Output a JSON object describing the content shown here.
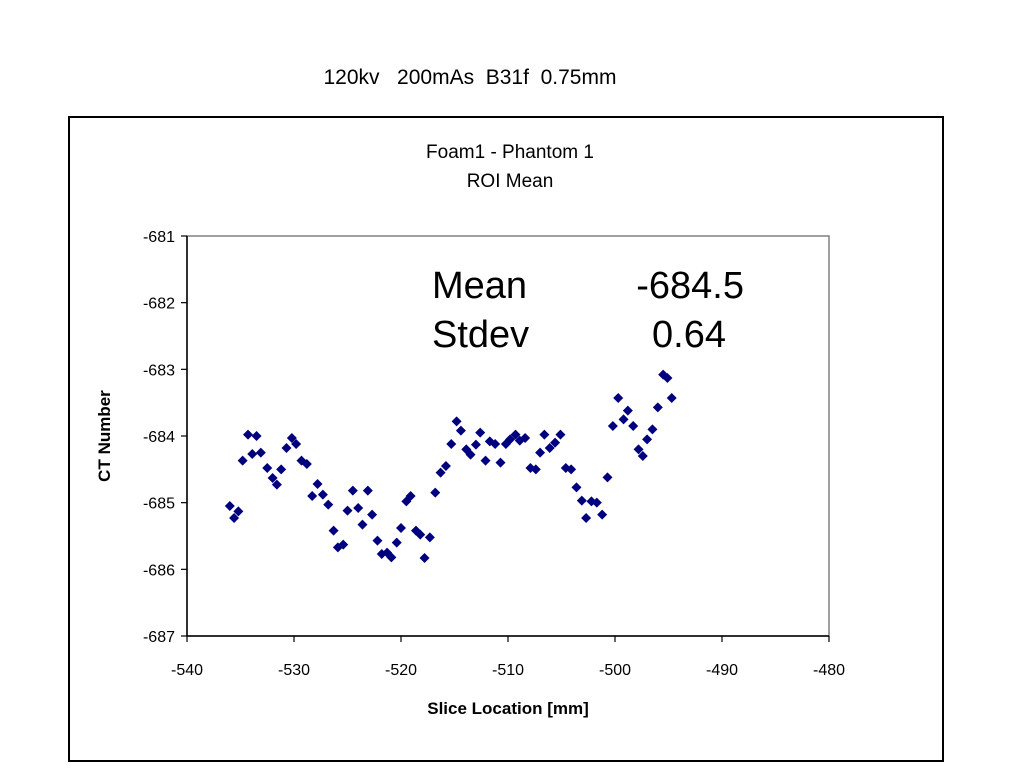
{
  "header": {
    "title": "120kv   200mAs  B31f  0.75mm"
  },
  "chart_data": {
    "type": "scatter",
    "title": "Foam1 - Phantom 1",
    "subtitle": "ROI Mean",
    "xlabel": "Slice Location [mm]",
    "ylabel": "CT Number",
    "xlim": [
      -540,
      -480
    ],
    "ylim": [
      -687,
      -681
    ],
    "x_ticks": [
      -540,
      -530,
      -520,
      -510,
      -500,
      -490,
      -480
    ],
    "y_ticks": [
      -681,
      -682,
      -683,
      -684,
      -685,
      -686,
      -687
    ],
    "x_tick_labels": [
      "-540",
      "-530",
      "-520",
      "-510",
      "-500",
      "-490",
      "-480"
    ],
    "y_tick_labels": [
      "-681",
      "-682",
      "-683",
      "-684",
      "-685",
      "-686",
      "-687"
    ],
    "grid": false,
    "legend": "none",
    "marker_color": "#00007f",
    "annotation": {
      "row1_label": "Mean",
      "row1_value": "-684.5",
      "row2_label": "Stdev",
      "row2_value": "0.64"
    },
    "points": [
      [
        -536.0,
        -685.05
      ],
      [
        -535.6,
        -685.23
      ],
      [
        -535.2,
        -685.13
      ],
      [
        -534.8,
        -684.37
      ],
      [
        -534.3,
        -683.98
      ],
      [
        -533.9,
        -684.27
      ],
      [
        -533.5,
        -684.0
      ],
      [
        -533.1,
        -684.25
      ],
      [
        -532.5,
        -684.48
      ],
      [
        -532.0,
        -684.63
      ],
      [
        -531.6,
        -684.73
      ],
      [
        -531.2,
        -684.5
      ],
      [
        -530.7,
        -684.18
      ],
      [
        -530.2,
        -684.03
      ],
      [
        -529.8,
        -684.12
      ],
      [
        -529.3,
        -684.37
      ],
      [
        -528.8,
        -684.42
      ],
      [
        -528.3,
        -684.9
      ],
      [
        -527.8,
        -684.72
      ],
      [
        -527.3,
        -684.88
      ],
      [
        -526.8,
        -685.03
      ],
      [
        -526.3,
        -685.42
      ],
      [
        -525.9,
        -685.67
      ],
      [
        -525.4,
        -685.63
      ],
      [
        -525.0,
        -685.12
      ],
      [
        -524.5,
        -684.82
      ],
      [
        -524.0,
        -685.08
      ],
      [
        -523.6,
        -685.33
      ],
      [
        -523.1,
        -684.82
      ],
      [
        -522.7,
        -685.18
      ],
      [
        -522.2,
        -685.57
      ],
      [
        -521.8,
        -685.77
      ],
      [
        -521.3,
        -685.75
      ],
      [
        -520.9,
        -685.82
      ],
      [
        -520.4,
        -685.6
      ],
      [
        -520.0,
        -685.38
      ],
      [
        -519.5,
        -684.98
      ],
      [
        -519.1,
        -684.9
      ],
      [
        -518.6,
        -685.42
      ],
      [
        -518.2,
        -685.48
      ],
      [
        -517.8,
        -685.83
      ],
      [
        -517.3,
        -685.52
      ],
      [
        -516.8,
        -684.85
      ],
      [
        -516.3,
        -684.55
      ],
      [
        -515.8,
        -684.45
      ],
      [
        -515.3,
        -684.12
      ],
      [
        -514.8,
        -683.78
      ],
      [
        -514.4,
        -683.92
      ],
      [
        -513.9,
        -684.2
      ],
      [
        -513.5,
        -684.28
      ],
      [
        -513.0,
        -684.13
      ],
      [
        -512.6,
        -683.95
      ],
      [
        -512.1,
        -684.37
      ],
      [
        -511.7,
        -684.08
      ],
      [
        -511.2,
        -684.12
      ],
      [
        -510.7,
        -684.4
      ],
      [
        -510.2,
        -684.12
      ],
      [
        -509.8,
        -684.05
      ],
      [
        -509.3,
        -683.98
      ],
      [
        -508.9,
        -684.07
      ],
      [
        -508.4,
        -684.03
      ],
      [
        -507.9,
        -684.48
      ],
      [
        -507.4,
        -684.5
      ],
      [
        -507.0,
        -684.25
      ],
      [
        -506.6,
        -683.98
      ],
      [
        -506.1,
        -684.18
      ],
      [
        -505.6,
        -684.1
      ],
      [
        -505.1,
        -683.98
      ],
      [
        -504.6,
        -684.48
      ],
      [
        -504.1,
        -684.5
      ],
      [
        -503.6,
        -684.77
      ],
      [
        -503.1,
        -684.97
      ],
      [
        -502.7,
        -685.23
      ],
      [
        -502.2,
        -684.98
      ],
      [
        -501.7,
        -685.0
      ],
      [
        -501.2,
        -685.18
      ],
      [
        -500.7,
        -684.62
      ],
      [
        -500.2,
        -683.85
      ],
      [
        -499.7,
        -683.43
      ],
      [
        -499.2,
        -683.75
      ],
      [
        -498.8,
        -683.62
      ],
      [
        -498.3,
        -683.85
      ],
      [
        -497.8,
        -684.2
      ],
      [
        -497.4,
        -684.3
      ],
      [
        -497.0,
        -684.05
      ],
      [
        -496.5,
        -683.9
      ],
      [
        -496.0,
        -683.57
      ],
      [
        -495.5,
        -683.08
      ],
      [
        -495.1,
        -683.13
      ],
      [
        -494.7,
        -683.43
      ]
    ]
  }
}
